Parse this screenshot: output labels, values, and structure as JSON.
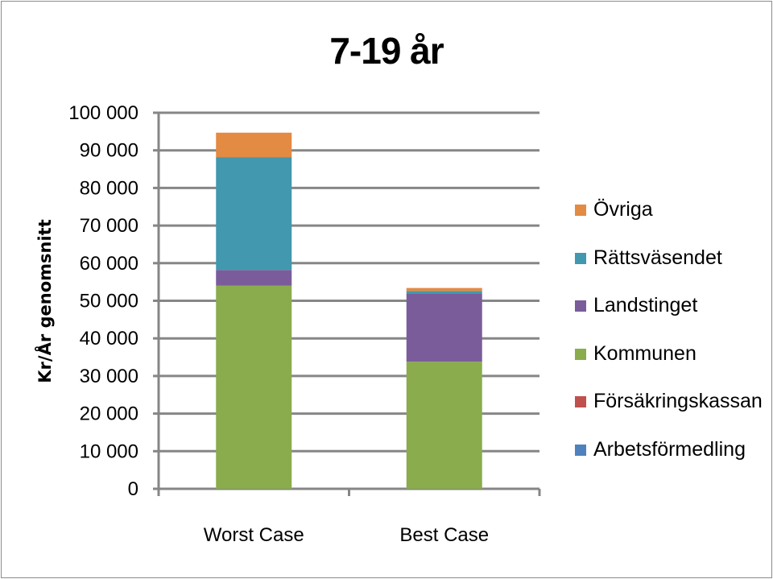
{
  "chart_data": {
    "type": "bar",
    "stacked": true,
    "title": "7-19 år",
    "ylabel": "Kr/År genomsnitt",
    "xlabel": "",
    "ylim": [
      0,
      100000
    ],
    "yticks": [
      "0",
      "10 000",
      "20 000",
      "30 000",
      "40 000",
      "50 000",
      "60 000",
      "70 000",
      "80 000",
      "90 000",
      "100 000"
    ],
    "grid": true,
    "legend_position": "right",
    "categories": [
      "Worst Case",
      "Best Case"
    ],
    "series": [
      {
        "name": "Arbetsförmedling",
        "color": "#4f81bd",
        "values": [
          0,
          0
        ]
      },
      {
        "name": "Försäkringskassan",
        "color": "#c0504d",
        "values": [
          0,
          0
        ]
      },
      {
        "name": "Kommunen",
        "color": "#8aac4d",
        "values": [
          54000,
          33800
        ]
      },
      {
        "name": "Landstinget",
        "color": "#7a5c9a",
        "values": [
          4200,
          18200
        ]
      },
      {
        "name": "Rättsväsendet",
        "color": "#4198af",
        "values": [
          30000,
          600
        ]
      },
      {
        "name": "Övriga",
        "color": "#e38a43",
        "values": [
          6500,
          800
        ]
      }
    ]
  }
}
